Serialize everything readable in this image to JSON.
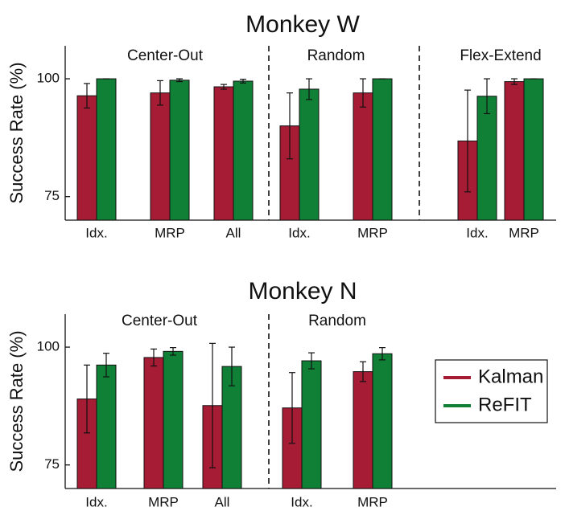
{
  "colors": {
    "kalman": "#a51c34",
    "refit": "#118037",
    "axis": "#111111",
    "errorbar": "#111111"
  },
  "legend": {
    "placement": "right of bottom panel",
    "entries": [
      {
        "name": "Kalman",
        "color": "#a51c34"
      },
      {
        "name": "ReFIT",
        "color": "#118037"
      }
    ]
  },
  "chart_data": [
    {
      "type": "bar",
      "title": "Monkey W",
      "ylabel": "Success Rate (%)",
      "ylim": [
        70,
        107
      ],
      "yticks": [
        75,
        100
      ],
      "series_names": [
        "Kalman",
        "ReFIT"
      ],
      "groups": [
        {
          "label": "Center-Out",
          "categories": [
            "Idx.",
            "MRP",
            "All"
          ],
          "kalman": [
            96.4,
            97,
            98.3
          ],
          "kalman_err": [
            2.6,
            2.6,
            0.5
          ],
          "refit": [
            100,
            99.7,
            99.5
          ],
          "refit_err": [
            0,
            0.3,
            0.4
          ]
        },
        {
          "label": "Random",
          "categories": [
            "Idx.",
            "MRP"
          ],
          "kalman": [
            90,
            97
          ],
          "kalman_err": [
            7,
            3
          ],
          "refit": [
            97.8,
            100
          ],
          "refit_err": [
            2.2,
            0
          ]
        },
        {
          "label": "Flex-Extend",
          "categories": [
            "Idx.",
            "MRP"
          ],
          "kalman": [
            86.8,
            99.4
          ],
          "kalman_err": [
            10.8,
            0.6
          ],
          "refit": [
            96.3,
            100
          ],
          "refit_err": [
            3.7,
            0
          ]
        }
      ]
    },
    {
      "type": "bar",
      "title": "Monkey N",
      "ylabel": "Success Rate (%)",
      "ylim": [
        70,
        107
      ],
      "yticks": [
        75,
        100
      ],
      "series_names": [
        "Kalman",
        "ReFIT"
      ],
      "groups": [
        {
          "label": "Center-Out",
          "categories": [
            "Idx.",
            "MRP",
            "All"
          ],
          "kalman": [
            89,
            97.8,
            87.6
          ],
          "kalman_err": [
            7.2,
            1.8,
            13.2
          ],
          "refit": [
            96.2,
            99.1,
            95.9
          ],
          "refit_err": [
            2.5,
            0.8,
            4.1
          ]
        },
        {
          "label": "Random",
          "categories": [
            "Idx.",
            "MRP"
          ],
          "kalman": [
            87.1,
            94.8
          ],
          "kalman_err": [
            7.5,
            2.1
          ],
          "refit": [
            97.1,
            98.6
          ],
          "refit_err": [
            1.7,
            1.3
          ]
        }
      ]
    }
  ]
}
